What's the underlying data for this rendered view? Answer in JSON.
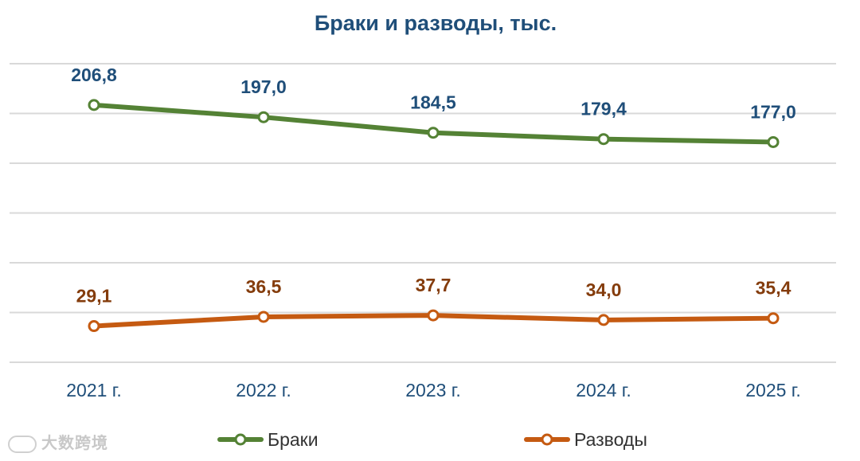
{
  "watermark": "大数跨境",
  "chart_data": {
    "type": "line",
    "title": "Браки и разводы, тыс.",
    "categories": [
      "2021 г.",
      "2022 г.",
      "2023 г.",
      "2024 г.",
      "2025 г."
    ],
    "series": [
      {
        "name": "Браки",
        "color": "#548235",
        "label_color": "#1f4e79",
        "values": [
          206.8,
          197.0,
          184.5,
          179.4,
          177.0
        ],
        "labels": [
          "206,8",
          "197,0",
          "184,5",
          "179,4",
          "177,0"
        ]
      },
      {
        "name": "Разводы",
        "color": "#c55a11",
        "label_color": "#843c0c",
        "values": [
          29.1,
          36.5,
          37.7,
          34.0,
          35.4
        ],
        "labels": [
          "29,1",
          "36,5",
          "37,7",
          "34,0",
          "35,4"
        ]
      }
    ],
    "ylim": [
      0,
      240
    ],
    "grid": true,
    "legend": "bottom"
  }
}
